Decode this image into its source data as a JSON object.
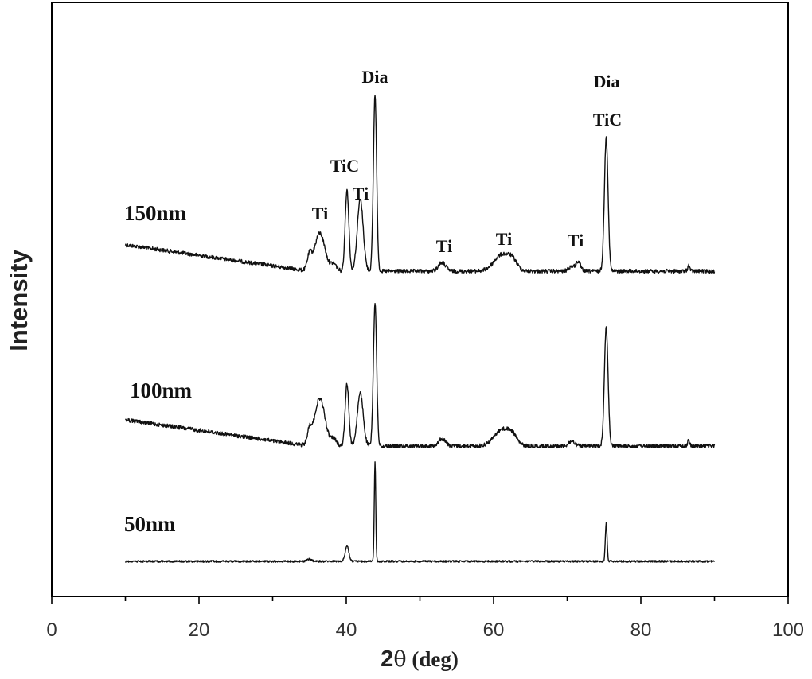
{
  "chart_data": {
    "type": "line",
    "xlabel_prefix": "2",
    "xlabel_symbol": "θ",
    "xlabel_unit": " (deg)",
    "ylabel": "Intensity",
    "xlim": [
      0,
      100
    ],
    "x_ticks": [
      0,
      20,
      40,
      60,
      80,
      100
    ],
    "x_tick_labels": [
      "0",
      "20",
      "40",
      "60",
      "80",
      "100"
    ],
    "grid": false,
    "legend": "none",
    "line_color": "#111111",
    "series": [
      {
        "name": "150nm",
        "baseline_start": 0.55,
        "baseline_end": 0,
        "x_min": 10,
        "x_max": 90,
        "peaks": [
          {
            "x": 35.0,
            "height": 0.3,
            "width": 0.3
          },
          {
            "x": 36.4,
            "height": 0.8,
            "width": 0.7
          },
          {
            "x": 38.3,
            "height": 0.15,
            "width": 0.4
          },
          {
            "x": 40.1,
            "height": 1.7,
            "width": 0.25
          },
          {
            "x": 41.9,
            "height": 1.5,
            "width": 0.4
          },
          {
            "x": 43.9,
            "height": 3.7,
            "width": 0.22
          },
          {
            "x": 53.0,
            "height": 0.18,
            "width": 0.5
          },
          {
            "x": 61.2,
            "height": 0.35,
            "width": 1.1
          },
          {
            "x": 62.6,
            "height": 0.15,
            "width": 0.6
          },
          {
            "x": 70.6,
            "height": 0.1,
            "width": 0.4
          },
          {
            "x": 71.5,
            "height": 0.2,
            "width": 0.3
          },
          {
            "x": 75.3,
            "height": 2.8,
            "width": 0.25
          },
          {
            "x": 86.5,
            "height": 0.12,
            "width": 0.15
          }
        ]
      },
      {
        "name": "100nm",
        "baseline_start": 0.55,
        "baseline_end": 0,
        "x_min": 10,
        "x_max": 90,
        "peaks": [
          {
            "x": 35.0,
            "height": 0.3,
            "width": 0.3
          },
          {
            "x": 36.4,
            "height": 1.0,
            "width": 0.7
          },
          {
            "x": 38.3,
            "height": 0.15,
            "width": 0.4
          },
          {
            "x": 40.1,
            "height": 1.3,
            "width": 0.25
          },
          {
            "x": 41.9,
            "height": 1.1,
            "width": 0.4
          },
          {
            "x": 43.9,
            "height": 3.0,
            "width": 0.22
          },
          {
            "x": 53.0,
            "height": 0.15,
            "width": 0.5
          },
          {
            "x": 61.2,
            "height": 0.35,
            "width": 1.1
          },
          {
            "x": 62.6,
            "height": 0.15,
            "width": 0.6
          },
          {
            "x": 70.6,
            "height": 0.1,
            "width": 0.4
          },
          {
            "x": 75.3,
            "height": 2.5,
            "width": 0.25
          },
          {
            "x": 86.5,
            "height": 0.12,
            "width": 0.15
          }
        ]
      },
      {
        "name": "50nm",
        "baseline_start": 0,
        "baseline_end": 0,
        "x_min": 10,
        "x_max": 90,
        "peaks": [
          {
            "x": 35.0,
            "height": 0.05,
            "width": 0.3
          },
          {
            "x": 40.1,
            "height": 0.35,
            "width": 0.25
          },
          {
            "x": 43.9,
            "height": 2.3,
            "width": 0.1
          },
          {
            "x": 75.3,
            "height": 0.9,
            "width": 0.12
          }
        ]
      }
    ],
    "annotations": [
      {
        "text": "Dia",
        "x": 43.9,
        "series": "150nm"
      },
      {
        "text": "TiC",
        "x": 40.1,
        "series": "150nm"
      },
      {
        "text": "Ti",
        "x": 36.4,
        "series": "150nm"
      },
      {
        "text": "Ti",
        "x": 42.2,
        "series": "150nm"
      },
      {
        "text": "Ti",
        "x": 53.0,
        "series": "150nm"
      },
      {
        "text": "Ti",
        "x": 61.2,
        "series": "150nm"
      },
      {
        "text": "Ti",
        "x": 71.3,
        "series": "150nm"
      },
      {
        "text": "Dia",
        "x": 75.3,
        "series": "150nm"
      },
      {
        "text": "TiC",
        "x": 75.3,
        "series": "150nm"
      }
    ]
  }
}
